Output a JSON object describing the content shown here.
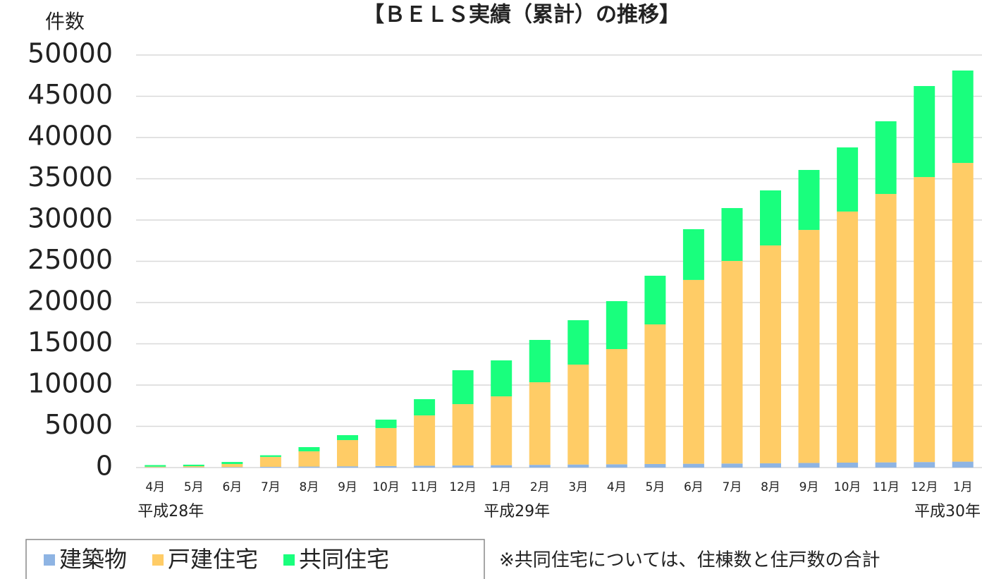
{
  "chart_data": {
    "type": "bar",
    "stacked": true,
    "title": "【ＢＥＬＳ実績（累計）の推移】",
    "ylabel": "件数",
    "categories": [
      "4月",
      "5月",
      "6月",
      "7月",
      "8月",
      "9月",
      "10月",
      "11月",
      "12月",
      "1月",
      "2月",
      "3月",
      "4月",
      "5月",
      "6月",
      "7月",
      "8月",
      "9月",
      "10月",
      "11月",
      "12月",
      "1月"
    ],
    "year_labels": [
      "平成28年",
      null,
      null,
      null,
      null,
      null,
      null,
      null,
      null,
      "平成29年",
      null,
      null,
      null,
      null,
      null,
      null,
      null,
      null,
      null,
      null,
      null,
      "平成30年"
    ],
    "series": [
      {
        "name": "建築物",
        "color": "#8eb4e3",
        "values": [
          30,
          40,
          60,
          90,
          120,
          150,
          180,
          220,
          260,
          290,
          330,
          370,
          400,
          430,
          460,
          490,
          520,
          560,
          600,
          630,
          670,
          720
        ]
      },
      {
        "name": "戸建住宅",
        "color": "#ffcc66",
        "values": [
          80,
          130,
          370,
          1200,
          1850,
          3180,
          4610,
          6100,
          7430,
          8340,
          10010,
          12110,
          13960,
          16920,
          22280,
          24550,
          26400,
          28240,
          30430,
          32530,
          34540,
          36200
        ]
      },
      {
        "name": "共同住宅",
        "color": "#19ff7d",
        "values": [
          190,
          180,
          250,
          200,
          510,
          600,
          1020,
          1970,
          4110,
          4360,
          5130,
          5380,
          5810,
          5900,
          6150,
          6410,
          6670,
          7270,
          7770,
          8810,
          11030,
          11200
        ]
      }
    ],
    "ylim": [
      0,
      50000
    ],
    "yticks": [
      0,
      5000,
      10000,
      15000,
      20000,
      25000,
      30000,
      35000,
      40000,
      45000,
      50000
    ],
    "grid": true,
    "legend": "bottom-left",
    "note": "※共同住宅については、住棟数と住戸数の合計"
  }
}
